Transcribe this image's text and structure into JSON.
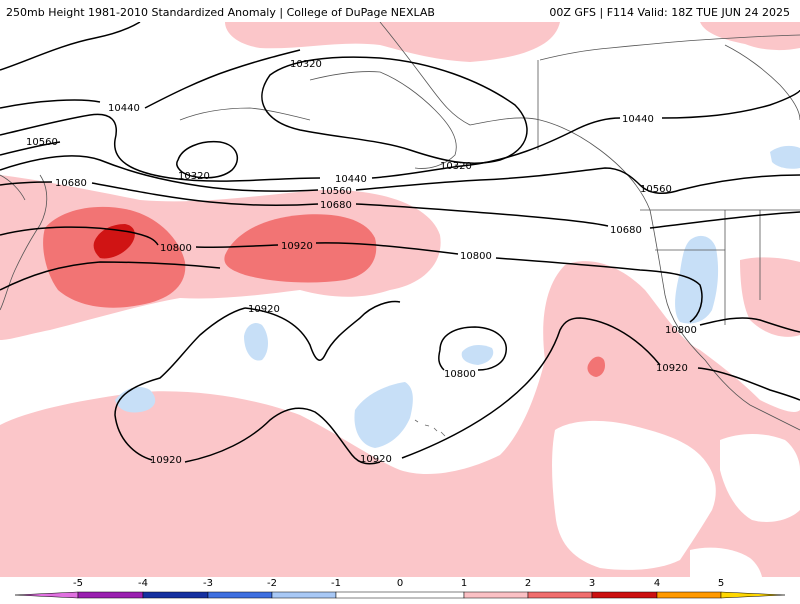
{
  "header": {
    "title": "250mb Height 1981-2010 Standardized Anomaly | College of DuPage NEXLAB",
    "run_info": "00Z GFS | F114 Valid: 18Z TUE JUN 24 2025"
  },
  "contour_labels": {
    "l10320a": "10320",
    "l10320b": "10320",
    "l10320c": "10320",
    "l10440a": "10440",
    "l10440b": "10440",
    "l10440c": "10440",
    "l10560a": "10560",
    "l10560b": "10560",
    "l10560c": "10560",
    "l10680a": "10680",
    "l10680b": "10680",
    "l10680c": "10680",
    "l10800a": "10800",
    "l10800b": "10800",
    "l10800c": "10800",
    "l10800d": "10800",
    "l10920a": "10920",
    "l10920b": "10920",
    "l10920c": "10920",
    "l10920d": "10920",
    "l10920e": "10920"
  },
  "legend": {
    "ticks": [
      "-5",
      "-4",
      "-3",
      "-2",
      "-1",
      "0",
      "1",
      "2",
      "3",
      "4",
      "5"
    ],
    "colors": {
      "lt_neg5": "#e070e0",
      "neg5_neg4": "#9a1fb0",
      "neg4_neg3": "#1530a0",
      "neg3_neg2": "#3e6fe0",
      "neg2_neg1": "#a8c8f5",
      "neg1_pos1": "#ffffff",
      "pos1_pos2": "#fbc0c4",
      "pos2_pos3": "#f06d6d",
      "pos3_pos4": "#cc1010",
      "pos4_pos5": "#ff9900",
      "gt_pos5": "#ffd700"
    }
  },
  "colors": {
    "anom_1_2": "#fbc6c9",
    "anom_2_3": "#f27474",
    "anom_3_4": "#d01414",
    "anom_neg_1_2": "#c7dff7"
  }
}
